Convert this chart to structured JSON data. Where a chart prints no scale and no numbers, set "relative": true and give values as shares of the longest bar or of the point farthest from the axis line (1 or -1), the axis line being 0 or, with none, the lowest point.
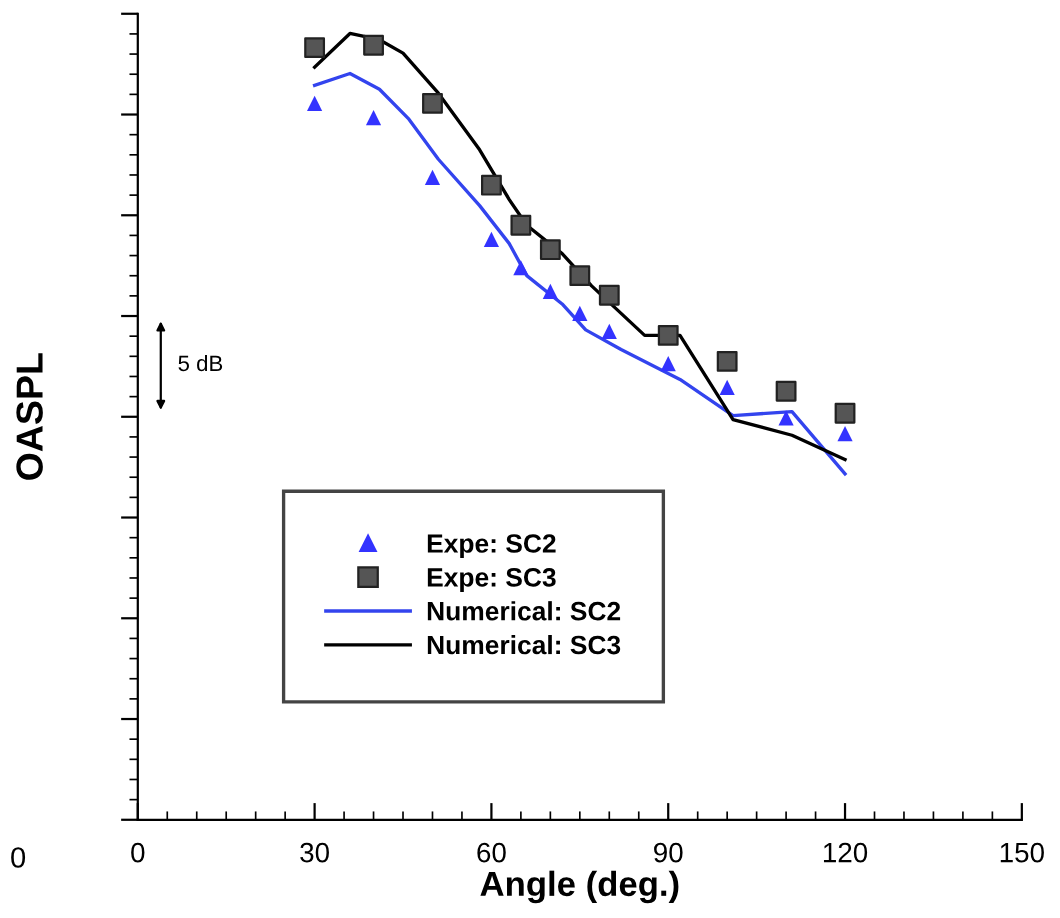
{
  "chart_data": {
    "type": "line",
    "relative": true,
    "xlabel": "Angle (deg.)",
    "ylabel": "OASPL",
    "xlim": [
      0,
      150
    ],
    "xticks": [
      0,
      30,
      60,
      90,
      120,
      150
    ],
    "annotations": [
      "5 dB",
      "0"
    ],
    "legend": "bottom left",
    "grid": false,
    "series": [
      {
        "name": "Expe: SC2",
        "type": "scatter",
        "marker": "triangle",
        "color": "#3333ff",
        "x": [
          30,
          40,
          50,
          60,
          65,
          70,
          75,
          80,
          90,
          100,
          110,
          120
        ],
        "values": [
          0.911,
          0.893,
          0.817,
          0.738,
          0.702,
          0.672,
          0.644,
          0.621,
          0.58,
          0.55,
          0.511,
          0.491
        ]
      },
      {
        "name": "Expe: SC3",
        "type": "scatter",
        "marker": "square",
        "color": "#555555",
        "x": [
          30,
          40,
          50,
          60,
          65,
          70,
          75,
          80,
          90,
          100,
          110,
          120
        ],
        "values": [
          0.982,
          0.985,
          0.911,
          0.807,
          0.756,
          0.725,
          0.692,
          0.667,
          0.616,
          0.583,
          0.545,
          0.517
        ]
      },
      {
        "name": "Numerical: SC2",
        "marker": "none",
        "color": "#3344ee",
        "x": [
          30,
          36,
          41,
          46,
          51,
          58,
          63,
          66,
          72,
          76,
          82,
          92,
          101,
          111,
          120
        ],
        "values": [
          0.934,
          0.949,
          0.929,
          0.891,
          0.84,
          0.781,
          0.733,
          0.692,
          0.656,
          0.623,
          0.598,
          0.56,
          0.514,
          0.519,
          0.44
        ]
      },
      {
        "name": "Numerical: SC3",
        "marker": "none",
        "color": "#000000",
        "x": [
          30,
          36,
          41,
          45,
          51,
          58,
          63,
          66,
          72,
          77,
          86,
          92,
          101,
          111,
          120
        ],
        "values": [
          0.957,
          1.0,
          0.992,
          0.975,
          0.924,
          0.852,
          0.789,
          0.756,
          0.72,
          0.679,
          0.616,
          0.616,
          0.509,
          0.489,
          0.458
        ]
      }
    ]
  }
}
